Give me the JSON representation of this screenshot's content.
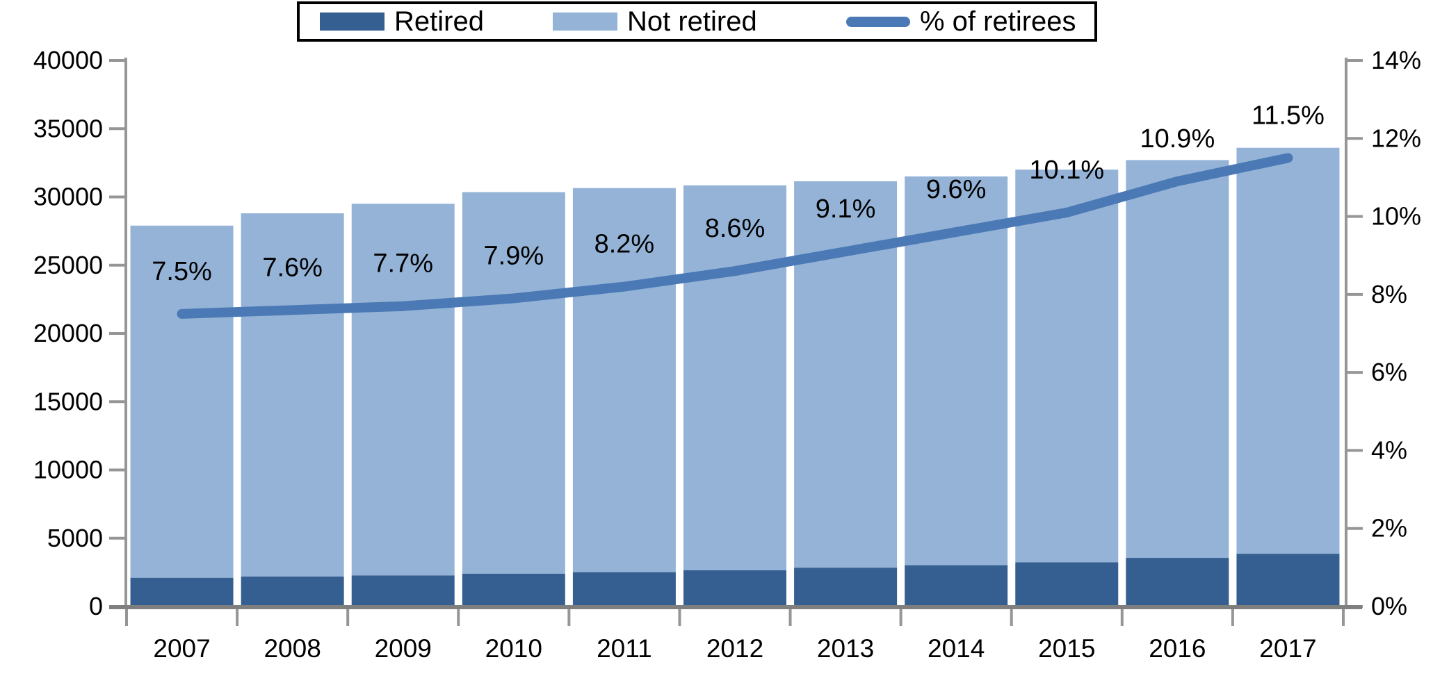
{
  "chart_data": {
    "type": "bar",
    "subtype": "stacked-bars-with-line-overlay",
    "title": "",
    "categories": [
      "2007",
      "2008",
      "2009",
      "2010",
      "2011",
      "2012",
      "2013",
      "2014",
      "2015",
      "2016",
      "2017"
    ],
    "series": [
      {
        "name": "Retired",
        "type": "bar",
        "axis": "left",
        "color": "#355E91",
        "values": [
          2100,
          2190,
          2270,
          2400,
          2510,
          2650,
          2840,
          3020,
          3230,
          3560,
          3860
        ]
      },
      {
        "name": "Not retired",
        "type": "bar",
        "axis": "left",
        "color": "#94B3D7",
        "values": [
          25800,
          26610,
          27230,
          27950,
          28140,
          28200,
          28310,
          28480,
          28770,
          29140,
          29740
        ]
      },
      {
        "name": "% of retirees",
        "type": "line",
        "axis": "right",
        "color": "#4A79B5",
        "values": [
          7.5,
          7.6,
          7.7,
          7.9,
          8.2,
          8.6,
          9.1,
          9.6,
          10.1,
          10.9,
          11.5
        ]
      }
    ],
    "bar_totals": [
      27900,
      28800,
      29500,
      30350,
      30650,
      30850,
      31150,
      31500,
      32000,
      32700,
      33600
    ],
    "point_labels": [
      "7.5%",
      "7.6%",
      "7.7%",
      "7.9%",
      "8.2%",
      "8.6%",
      "9.1%",
      "9.6%",
      "10.1%",
      "10.9%",
      "11.5%"
    ],
    "left_axis": {
      "min": 0,
      "max": 40000,
      "step": 5000,
      "tick_labels": [
        "0",
        "5000",
        "10000",
        "15000",
        "20000",
        "25000",
        "30000",
        "35000",
        "40000"
      ]
    },
    "right_axis": {
      "min": 0,
      "max": 14,
      "step": 2,
      "tick_labels": [
        "0%",
        "2%",
        "4%",
        "6%",
        "8%",
        "10%",
        "12%",
        "14%"
      ]
    },
    "legend": {
      "position": "top",
      "border": true,
      "entries": [
        "Retired",
        "Not retired",
        "% of retirees"
      ]
    },
    "grid": false,
    "colors": {
      "axis_line": "#969696",
      "bottom_axis_line": "#7F7F7F",
      "text": "#000000",
      "background": "#FFFFFF"
    }
  }
}
